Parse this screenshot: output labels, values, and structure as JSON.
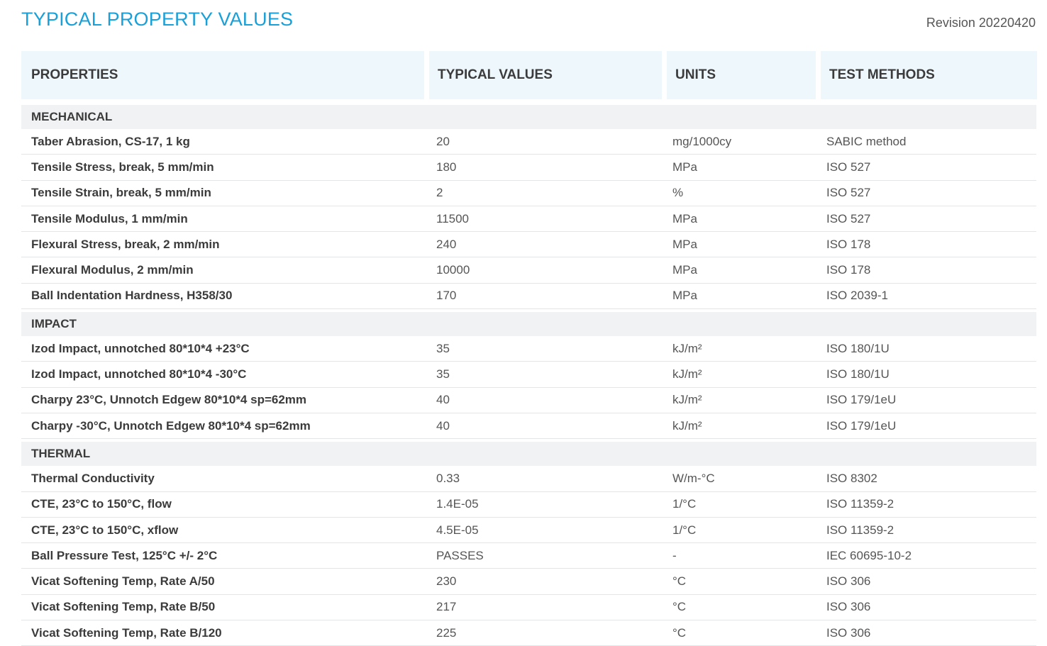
{
  "title": "TYPICAL PROPERTY VALUES",
  "revision": "Revision 20220420",
  "headers": {
    "properties": "PROPERTIES",
    "values": "TYPICAL VALUES",
    "units": "UNITS",
    "methods": "TEST METHODS"
  },
  "sections": [
    {
      "name": "MECHANICAL",
      "rows": [
        {
          "property": "Taber Abrasion, CS-17, 1 kg",
          "value": "20",
          "unit": "mg/1000cy",
          "method": "SABIC method"
        },
        {
          "property": "Tensile Stress, break, 5 mm/min",
          "value": "180",
          "unit": "MPa",
          "method": "ISO 527"
        },
        {
          "property": "Tensile Strain, break, 5 mm/min",
          "value": "2",
          "unit": "%",
          "method": "ISO 527"
        },
        {
          "property": "Tensile Modulus, 1 mm/min",
          "value": "11500",
          "unit": "MPa",
          "method": "ISO 527"
        },
        {
          "property": "Flexural Stress, break, 2 mm/min",
          "value": "240",
          "unit": "MPa",
          "method": "ISO 178"
        },
        {
          "property": "Flexural Modulus, 2 mm/min",
          "value": "10000",
          "unit": "MPa",
          "method": "ISO 178"
        },
        {
          "property": "Ball Indentation Hardness, H358/30",
          "value": "170",
          "unit": "MPa",
          "method": "ISO 2039-1"
        }
      ]
    },
    {
      "name": "IMPACT",
      "rows": [
        {
          "property": "Izod Impact, unnotched 80*10*4 +23°C",
          "value": "35",
          "unit": "kJ/m²",
          "method": "ISO 180/1U"
        },
        {
          "property": "Izod Impact, unnotched 80*10*4 -30°C",
          "value": "35",
          "unit": "kJ/m²",
          "method": "ISO 180/1U"
        },
        {
          "property": "Charpy 23°C, Unnotch Edgew 80*10*4 sp=62mm",
          "value": "40",
          "unit": "kJ/m²",
          "method": "ISO 179/1eU"
        },
        {
          "property": "Charpy -30°C, Unnotch Edgew 80*10*4 sp=62mm",
          "value": "40",
          "unit": "kJ/m²",
          "method": "ISO 179/1eU"
        }
      ]
    },
    {
      "name": "THERMAL",
      "rows": [
        {
          "property": "Thermal Conductivity",
          "value": "0.33",
          "unit": "W/m-°C",
          "method": "ISO 8302"
        },
        {
          "property": "CTE, 23°C to 150°C, flow",
          "value": "1.4E-05",
          "unit": "1/°C",
          "method": "ISO 11359-2"
        },
        {
          "property": "CTE, 23°C to 150°C, xflow",
          "value": "4.5E-05",
          "unit": "1/°C",
          "method": "ISO 11359-2"
        },
        {
          "property": "Ball Pressure Test, 125°C +/- 2°C",
          "value": "PASSES",
          "unit": "-",
          "method": "IEC 60695-10-2"
        },
        {
          "property": "Vicat Softening Temp, Rate A/50",
          "value": "230",
          "unit": "°C",
          "method": "ISO 306"
        },
        {
          "property": "Vicat Softening Temp, Rate B/50",
          "value": "217",
          "unit": "°C",
          "method": "ISO 306"
        },
        {
          "property": "Vicat Softening Temp, Rate B/120",
          "value": "225",
          "unit": "°C",
          "method": "ISO 306"
        }
      ]
    }
  ]
}
